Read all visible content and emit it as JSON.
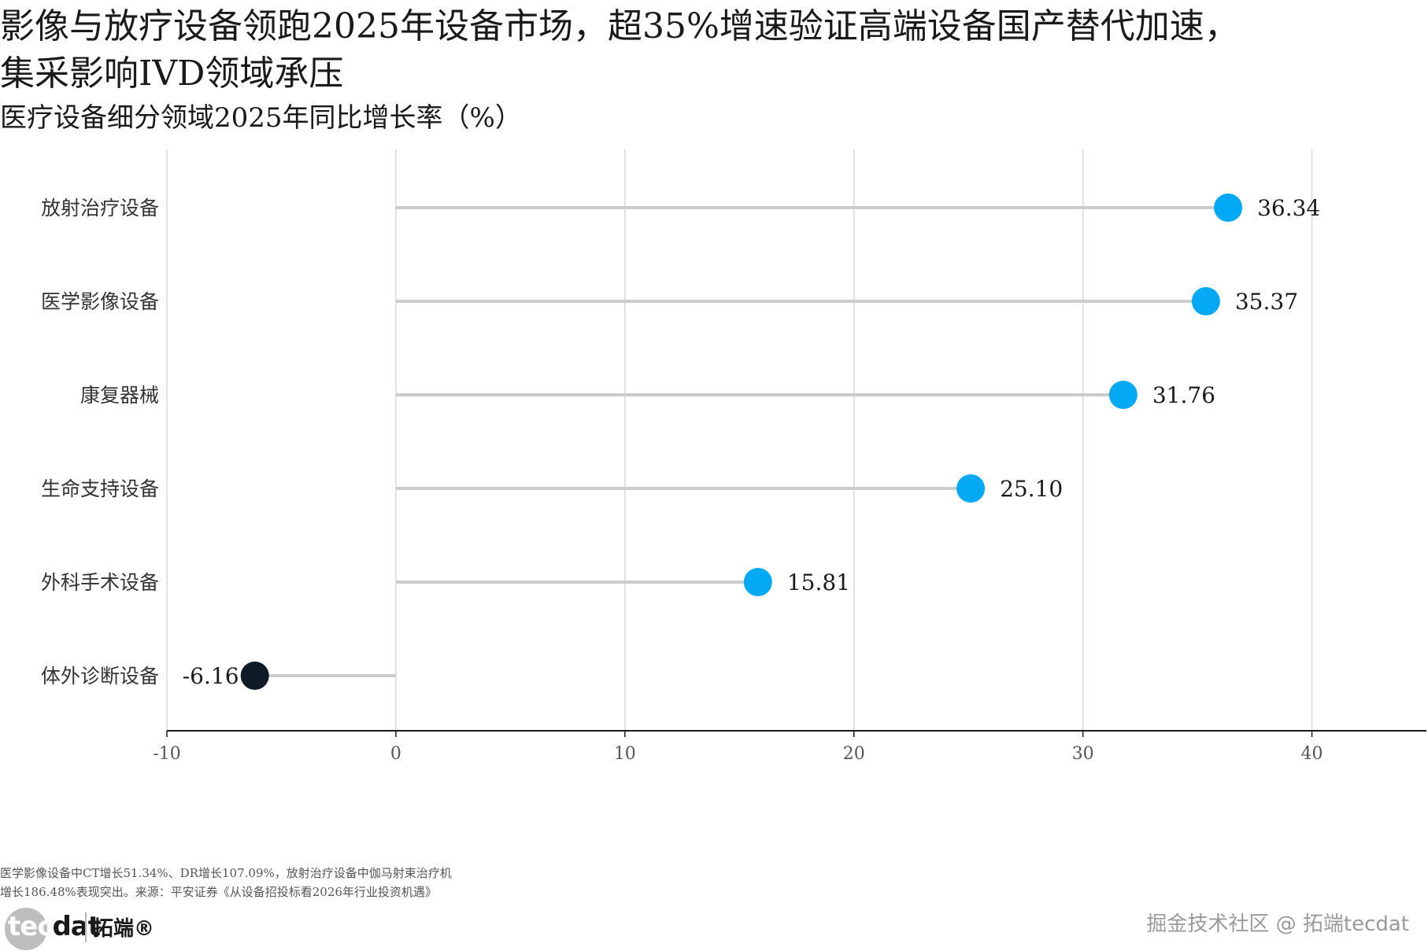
{
  "title": {
    "line1": "影像与放疗设备领跑2025年设备市场，超35%增速验证高端设备国产替代加速，",
    "line2": "集采影响IVD领域承压"
  },
  "subtitle": "医疗设备细分领域2025年同比增长率（%）",
  "note": {
    "line1": "医学影像设备中CT增长51.34%、DR增长107.09%，放射治疗设备中伽马射束治疗机",
    "line2": "增长186.48%表现突出。来源：平安证券《从设备招投标看2026年行业投资机遇》"
  },
  "logo": {
    "tec": "tec",
    "dat": "dat",
    "cn": "拓端®"
  },
  "watermark": "掘金技术社区 @ 拓端tecdat",
  "colors": {
    "positive": "#03a9f4",
    "negative": "#0e1a26",
    "stem": "#cccccc",
    "grid": "#d9d9d9",
    "axis": "#1a1a1a"
  },
  "chart_data": {
    "type": "lollipop",
    "orientation": "horizontal",
    "categories": [
      "放射治疗设备",
      "医学影像设备",
      "康复器械",
      "生命支持设备",
      "外科手术设备",
      "体外诊断设备"
    ],
    "values": [
      36.34,
      35.37,
      31.76,
      25.1,
      15.81,
      -6.16
    ],
    "value_labels": [
      "36.34",
      "35.37",
      "31.76",
      "25.10",
      "15.81",
      "-6.16"
    ],
    "baseline": 0,
    "xlim": [
      -10,
      45
    ],
    "xticks": [
      -10,
      0,
      10,
      20,
      30,
      40
    ],
    "xtick_labels": [
      "-10",
      "0",
      "10",
      "20",
      "30",
      "40"
    ],
    "grid": "vertical"
  }
}
